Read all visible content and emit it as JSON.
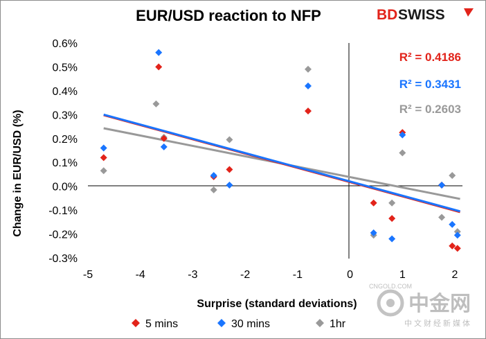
{
  "chart_data": {
    "type": "scatter",
    "title": "EUR/USD reaction to NFP",
    "xlabel": "Surprise (standard deviations)",
    "ylabel": "Change in EUR/USD  (%)",
    "xlim": [
      -5,
      2.1
    ],
    "ylim": [
      -0.3,
      0.6
    ],
    "x_ticks": [
      "-5",
      "-4",
      "-3",
      "-2",
      "-1",
      "0",
      "1",
      "2"
    ],
    "y_ticks": [
      "-0.3%",
      "-0.2%",
      "-0.1%",
      "0.0%",
      "0.1%",
      "0.2%",
      "0.3%",
      "0.4%",
      "0.5%",
      "0.6%"
    ],
    "grid": false,
    "legend_position": "bottom",
    "series": [
      {
        "name": "5 mins",
        "color": "#e2231a",
        "r2_label": "R² = 0.4186",
        "trend": [
          [
            -4.7,
            0.298
          ],
          [
            2.1,
            -0.108
          ]
        ],
        "points": [
          [
            -4.7,
            0.12
          ],
          [
            -3.65,
            0.5
          ],
          [
            -3.55,
            0.2
          ],
          [
            -2.6,
            0.04
          ],
          [
            -2.3,
            0.07
          ],
          [
            -0.8,
            0.315
          ],
          [
            0.45,
            -0.07
          ],
          [
            0.8,
            -0.135
          ],
          [
            1.0,
            0.225
          ],
          [
            1.75,
            0.005
          ],
          [
            1.95,
            -0.25
          ],
          [
            2.05,
            -0.26
          ]
        ]
      },
      {
        "name": "30 mins",
        "color": "#1a75ff",
        "r2_label": "R² = 0.3431",
        "trend": [
          [
            -4.7,
            0.3
          ],
          [
            2.1,
            -0.105
          ]
        ],
        "points": [
          [
            -4.7,
            0.16
          ],
          [
            -3.65,
            0.56
          ],
          [
            -3.55,
            0.165
          ],
          [
            -2.6,
            0.045
          ],
          [
            -2.3,
            0.005
          ],
          [
            -0.8,
            0.42
          ],
          [
            0.45,
            -0.195
          ],
          [
            0.8,
            -0.22
          ],
          [
            1.0,
            0.215
          ],
          [
            1.75,
            0.005
          ],
          [
            1.95,
            -0.16
          ],
          [
            2.05,
            -0.205
          ]
        ]
      },
      {
        "name": "1hr",
        "color": "#999999",
        "r2_label": "R² = 0.2603",
        "trend": [
          [
            -4.7,
            0.243
          ],
          [
            2.1,
            -0.053
          ]
        ],
        "points": [
          [
            -4.7,
            0.065
          ],
          [
            -3.7,
            0.345
          ],
          [
            -3.55,
            0.205
          ],
          [
            -2.6,
            -0.015
          ],
          [
            -2.3,
            0.195
          ],
          [
            -0.8,
            0.49
          ],
          [
            0.45,
            -0.205
          ],
          [
            0.8,
            -0.07
          ],
          [
            1.0,
            0.14
          ],
          [
            1.75,
            -0.13
          ],
          [
            1.95,
            0.045
          ],
          [
            2.05,
            -0.19
          ]
        ]
      }
    ]
  },
  "logo": {
    "part1": "BD",
    "part2": "SWISS"
  },
  "watermark": {
    "cn": "中金网",
    "url": "CNGOLD.COM",
    "sub": "中文财经新媒体"
  }
}
